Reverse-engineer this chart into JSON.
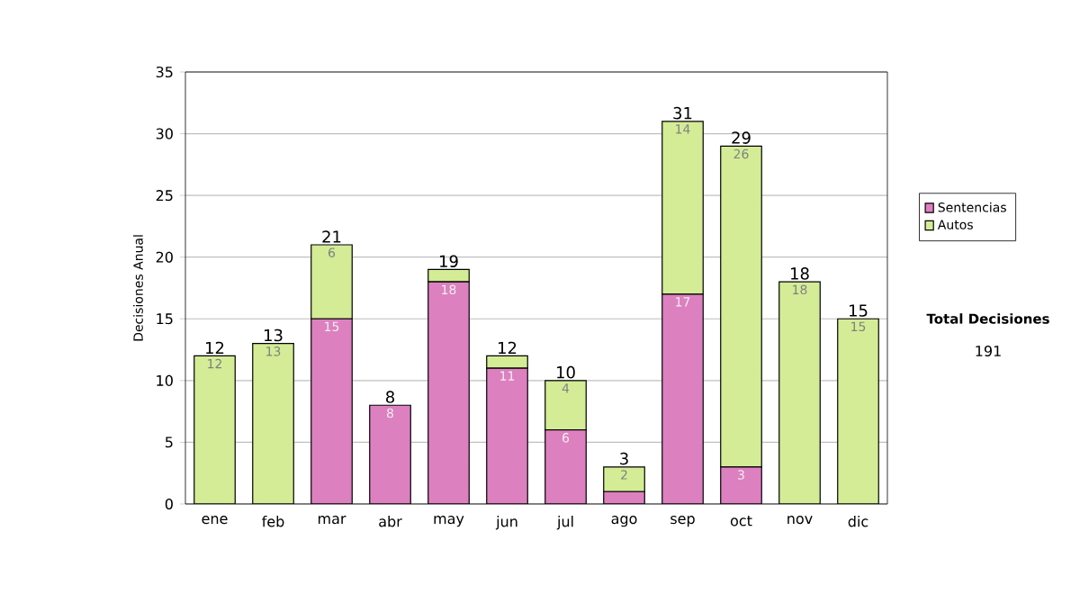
{
  "chart_data": {
    "type": "bar",
    "stacked": true,
    "ylabel": "Decisiones Anual",
    "categories": [
      "ene",
      "feb",
      "mar",
      "abr",
      "may",
      "jun",
      "jul",
      "ago",
      "sep",
      "oct",
      "nov",
      "dic"
    ],
    "series": [
      {
        "name": "Sentencias",
        "color": "#dd80c0",
        "values": [
          0,
          0,
          15,
          8,
          18,
          11,
          6,
          1,
          17,
          3,
          0,
          0
        ],
        "value_labels": [
          null,
          null,
          "15",
          "8",
          "18",
          "11",
          "6",
          null,
          "17",
          "3",
          null,
          null
        ]
      },
      {
        "name": "Autos",
        "color": "#d4ec96",
        "values": [
          12,
          13,
          6,
          0,
          1,
          1,
          4,
          2,
          14,
          26,
          18,
          15
        ],
        "value_labels": [
          "12",
          "13",
          "6",
          null,
          null,
          null,
          "4",
          "2",
          "14",
          "26",
          "18",
          "15"
        ]
      }
    ],
    "totals": [
      "12",
      "13",
      "21",
      "8",
      "19",
      "12",
      "10",
      "3",
      "31",
      "29",
      "18",
      "15"
    ],
    "ylim": [
      0,
      35
    ],
    "yticks": [
      0,
      5,
      10,
      15,
      20,
      25,
      30,
      35
    ],
    "grid": "y",
    "legend": "right",
    "annotations": [
      "Total Decisiones",
      "191"
    ]
  }
}
